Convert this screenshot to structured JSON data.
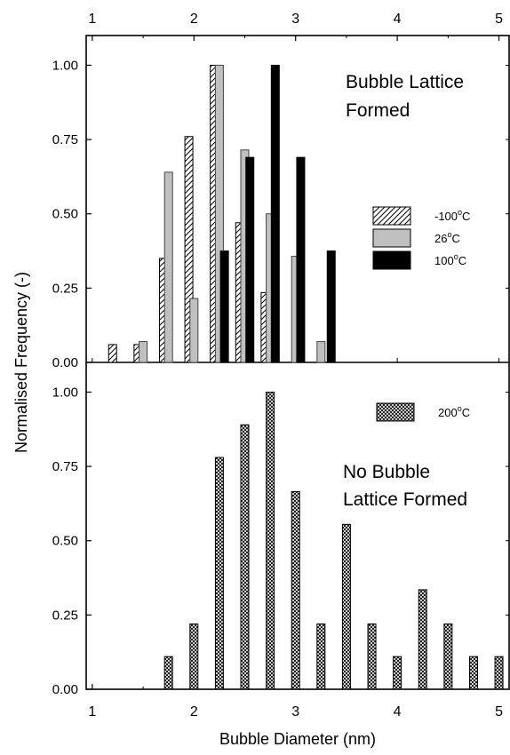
{
  "chart_data": {
    "type": "bar",
    "xlabel": "Bubble Diameter (nm)",
    "ylabel": "Normalised Frequency (-)",
    "xlim": [
      0.94,
      5.1
    ],
    "x_ticks": [
      "1",
      "2",
      "3",
      "4",
      "5"
    ],
    "y_ticks": [
      "0.00",
      "0.25",
      "0.50",
      "0.75",
      "1.00"
    ],
    "grid": false,
    "panels": [
      {
        "id": "top",
        "ylim": [
          0,
          1.1
        ],
        "annotation": [
          "Bubble Lattice",
          "Formed"
        ],
        "legend_position": "center-right",
        "series": [
          {
            "name": "-100°C",
            "label_main": "-100",
            "label_sup": "o",
            "label_unit": "C",
            "fill": "hatch",
            "color": "#000000",
            "x": [
              1.2,
              1.45,
              1.7,
              1.95,
              2.2,
              2.45,
              2.7
            ],
            "values": [
              0.06,
              0.06,
              0.35,
              0.76,
              1.0,
              0.47,
              0.235
            ]
          },
          {
            "name": "26°C",
            "label_main": "26",
            "label_sup": "o",
            "label_unit": "C",
            "fill": "solid",
            "color": "#c0c0c0",
            "x": [
              1.5,
              1.75,
              2.0,
              2.25,
              2.5,
              2.75,
              3.0,
              3.25
            ],
            "values": [
              0.07,
              0.64,
              0.215,
              1.0,
              0.715,
              0.5,
              0.357,
              0.07
            ]
          },
          {
            "name": "100°C",
            "label_main": "100",
            "label_sup": "o",
            "label_unit": "C",
            "fill": "solid",
            "color": "#000000",
            "x": [
              2.3,
              2.55,
              2.8,
              3.05,
              3.35
            ],
            "values": [
              0.375,
              0.69,
              1.0,
              0.69,
              0.375
            ]
          }
        ]
      },
      {
        "id": "bottom",
        "ylim": [
          0,
          1.1
        ],
        "annotation": [
          "No Bubble",
          "Lattice Formed"
        ],
        "legend_position": "top-right",
        "series": [
          {
            "name": "200°C",
            "label_main": "200",
            "label_sup": "o",
            "label_unit": "C",
            "fill": "crosshatch",
            "color": "#000000",
            "x": [
              1.75,
              2.0,
              2.25,
              2.5,
              2.75,
              3.0,
              3.25,
              3.5,
              3.75,
              4.0,
              4.25,
              4.5,
              4.75,
              5.0
            ],
            "values": [
              0.11,
              0.22,
              0.78,
              0.89,
              1.0,
              0.665,
              0.22,
              0.555,
              0.22,
              0.11,
              0.335,
              0.22,
              0.11,
              0.11
            ]
          }
        ]
      }
    ]
  }
}
